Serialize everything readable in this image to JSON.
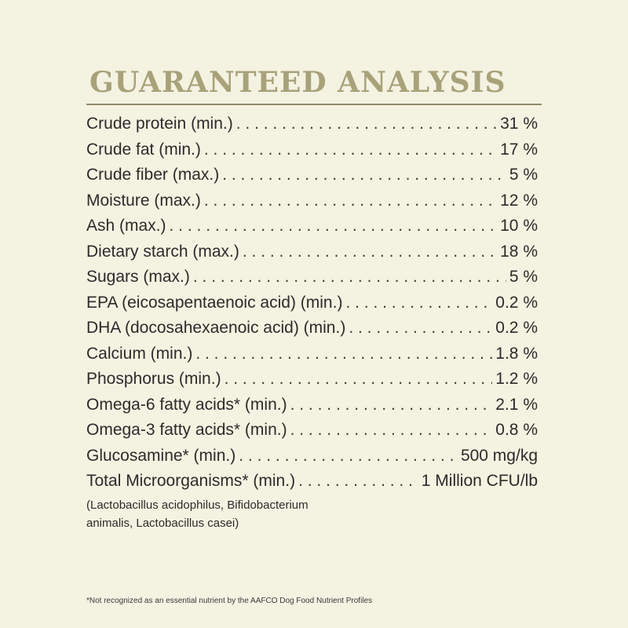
{
  "title": "GUARANTEED ANALYSIS",
  "rows": [
    {
      "label": "Crude protein (min.)",
      "value": "31 %"
    },
    {
      "label": "Crude fat (min.)",
      "value": "17 %"
    },
    {
      "label": "Crude fiber (max.)",
      "value": "5 %"
    },
    {
      "label": "Moisture (max.)",
      "value": "12 %"
    },
    {
      "label": "Ash (max.)",
      "value": "10 %"
    },
    {
      "label": "Dietary starch (max.)",
      "value": "18 %"
    },
    {
      "label": "Sugars (max.)",
      "value": "5 %"
    },
    {
      "label": "EPA (eicosapentaenoic acid) (min.)",
      "value": "0.2 %"
    },
    {
      "label": "DHA (docosahexaenoic acid) (min.)",
      "value": "0.2 %"
    },
    {
      "label": "Calcium (min.)",
      "value": "1.8 %"
    },
    {
      "label": "Phosphorus (min.)",
      "value": "1.2 %"
    },
    {
      "label": "Omega-6 fatty acids* (min.)",
      "value": "2.1 %"
    },
    {
      "label": "Omega-3 fatty acids* (min.)",
      "value": "0.8 %"
    },
    {
      "label": "Glucosamine* (min.)",
      "value": "500 mg/kg"
    },
    {
      "label": "Total Microorganisms* (min.)",
      "value": "1 Million CFU/lb"
    }
  ],
  "microorganisms_note": "(Lactobacillus acidophilus, Bifidobacterium animalis, Lactobacillus casei)",
  "footnote": "*Not recognized as an essential nutrient by the AAFCO Dog Food Nutrient Profiles",
  "colors": {
    "background": "#f4f2e1",
    "title": "#a8a27a",
    "rule": "#8f8a68",
    "text": "#2b2b2b"
  }
}
